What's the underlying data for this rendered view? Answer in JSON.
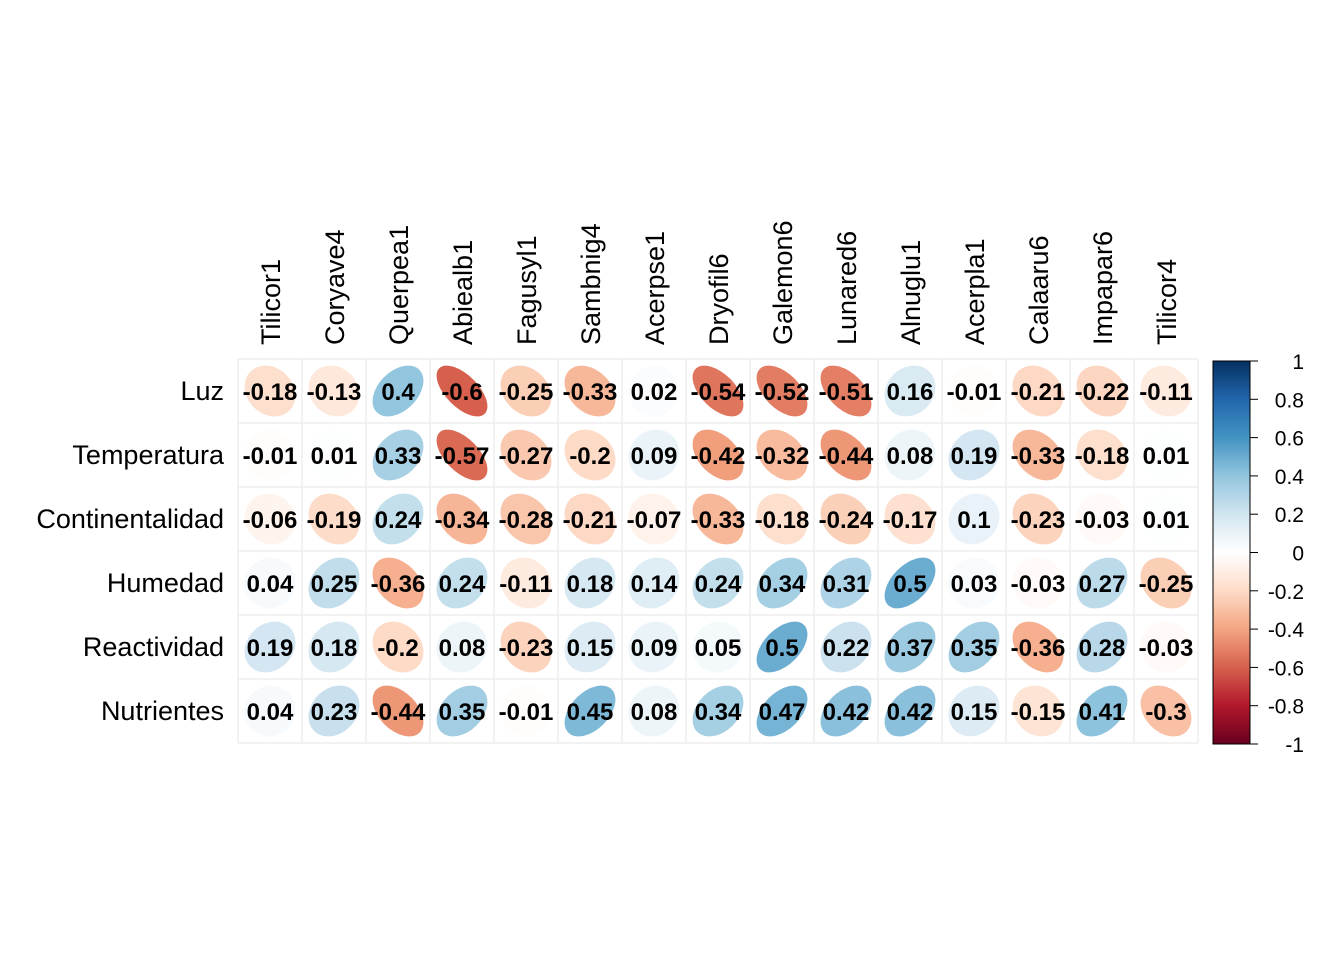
{
  "chart_data": {
    "type": "heatmap",
    "title": "",
    "rows": [
      "Luz",
      "Temperatura",
      "Continentalidad",
      "Humedad",
      "Reactividad",
      "Nutrientes"
    ],
    "columns": [
      "Tilicor1",
      "Coryave4",
      "Querpea1",
      "Abiealb1",
      "Fagusyl1",
      "Sambnig4",
      "Acerpse1",
      "Dryofil6",
      "Galemon6",
      "Lunared6",
      "Alnuglu1",
      "Acerpla1",
      "Calaaru6",
      "Impapar6",
      "Tilicor4"
    ],
    "values": [
      [
        -0.18,
        -0.13,
        0.4,
        -0.6,
        -0.25,
        -0.33,
        0.02,
        -0.54,
        -0.52,
        -0.51,
        0.16,
        -0.01,
        -0.21,
        -0.22,
        -0.11
      ],
      [
        -0.01,
        0.01,
        0.33,
        -0.57,
        -0.27,
        -0.2,
        0.09,
        -0.42,
        -0.32,
        -0.44,
        0.08,
        0.19,
        -0.33,
        -0.18,
        0.01
      ],
      [
        -0.06,
        -0.19,
        0.24,
        -0.34,
        -0.28,
        -0.21,
        -0.07,
        -0.33,
        -0.18,
        -0.24,
        -0.17,
        0.1,
        -0.23,
        -0.03,
        0.01
      ],
      [
        0.04,
        0.25,
        -0.36,
        0.24,
        -0.11,
        0.18,
        0.14,
        0.24,
        0.34,
        0.31,
        0.5,
        0.03,
        -0.03,
        0.27,
        -0.25
      ],
      [
        0.19,
        0.18,
        -0.2,
        0.08,
        -0.23,
        0.15,
        0.09,
        0.05,
        0.5,
        0.22,
        0.37,
        0.35,
        -0.36,
        0.28,
        -0.03
      ],
      [
        0.04,
        0.23,
        -0.44,
        0.35,
        -0.01,
        0.45,
        0.08,
        0.34,
        0.47,
        0.42,
        0.42,
        0.15,
        -0.15,
        0.41,
        -0.3
      ]
    ],
    "value_labels": [
      [
        "-0.18",
        "-0.13",
        "0.4",
        "-0.6",
        "-0.25",
        "-0.33",
        "0.02",
        "-0.54",
        "-0.52",
        "-0.51",
        "0.16",
        "-0.01",
        "-0.21",
        "-0.22",
        "-0.11"
      ],
      [
        "-0.01",
        "0.01",
        "0.33",
        "-0.57",
        "-0.27",
        "-0.2",
        "0.09",
        "-0.42",
        "-0.32",
        "-0.44",
        "0.08",
        "0.19",
        "-0.33",
        "-0.18",
        "0.01"
      ],
      [
        "-0.06",
        "-0.19",
        "0.24",
        "-0.34",
        "-0.28",
        "-0.21",
        "-0.07",
        "-0.33",
        "-0.18",
        "-0.24",
        "-0.17",
        "0.1",
        "-0.23",
        "-0.03",
        "0.01"
      ],
      [
        "0.04",
        "0.25",
        "-0.36",
        "0.24",
        "-0.11",
        "0.18",
        "0.14",
        "0.24",
        "0.34",
        "0.31",
        "0.5",
        "0.03",
        "-0.03",
        "0.27",
        "-0.25"
      ],
      [
        "0.19",
        "0.18",
        "-0.2",
        "0.08",
        "-0.23",
        "0.15",
        "0.09",
        "0.05",
        "0.5",
        "0.22",
        "0.37",
        "0.35",
        "-0.36",
        "0.28",
        "-0.03"
      ],
      [
        "0.04",
        "0.23",
        "-0.44",
        "0.35",
        "-0.01",
        "0.45",
        "0.08",
        "0.34",
        "0.47",
        "0.42",
        "0.42",
        "0.15",
        "-0.15",
        "0.41",
        "-0.3"
      ]
    ],
    "color_range": [
      -1,
      1
    ],
    "colorbar_ticks": [
      "1",
      "0.8",
      "0.6",
      "0.4",
      "0.2",
      "0",
      "-0.2",
      "-0.4",
      "-0.6",
      "-0.8",
      "-1"
    ],
    "colorbar_tick_values": [
      1,
      0.8,
      0.6,
      0.4,
      0.2,
      0,
      -0.2,
      -0.4,
      -0.6,
      -0.8,
      -1
    ],
    "palette": [
      "#67001F",
      "#B2182B",
      "#D6604D",
      "#F4A582",
      "#FDDBC7",
      "#FFFFFF",
      "#D1E5F0",
      "#92C5DE",
      "#4393C3",
      "#2166AC",
      "#053061"
    ],
    "grid": true,
    "legend": "right",
    "mark": "ellipse"
  }
}
